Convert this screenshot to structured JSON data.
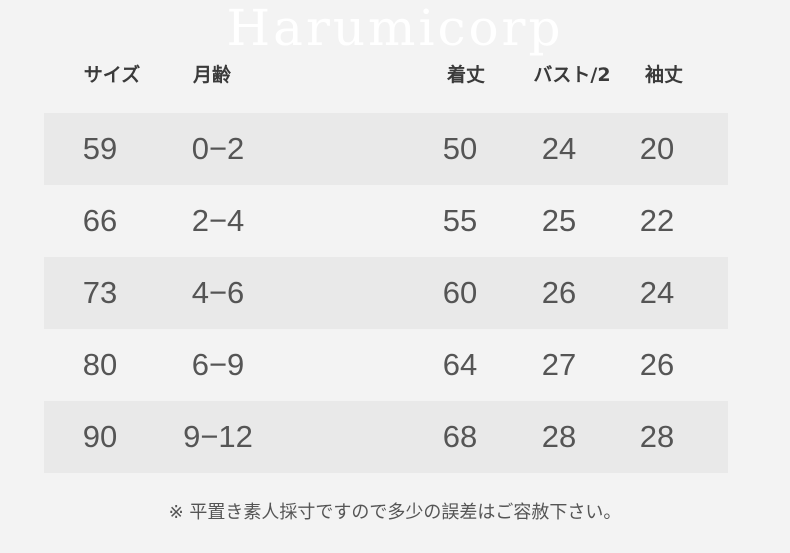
{
  "headers": [
    "サイズ",
    "月齢",
    "着丈",
    "バスト/2",
    "袖丈"
  ],
  "rows": [
    [
      "59",
      "0−2",
      "50",
      "24",
      "20"
    ],
    [
      "66",
      "2−4",
      "55",
      "25",
      "22"
    ],
    [
      "73",
      "4−6",
      "60",
      "26",
      "24"
    ],
    [
      "80",
      "6−9",
      "64",
      "27",
      "26"
    ],
    [
      "90",
      "9−12",
      "68",
      "28",
      "28"
    ]
  ],
  "watermark": "Harumicorp",
  "note": "※ 平置き素人採寸ですので多少の誤差はご容赦下さい。",
  "colors": {
    "background": "#f3f3f3",
    "stripe": "#e9e9e9",
    "text": "#555555",
    "header": "#3a3a3a"
  }
}
